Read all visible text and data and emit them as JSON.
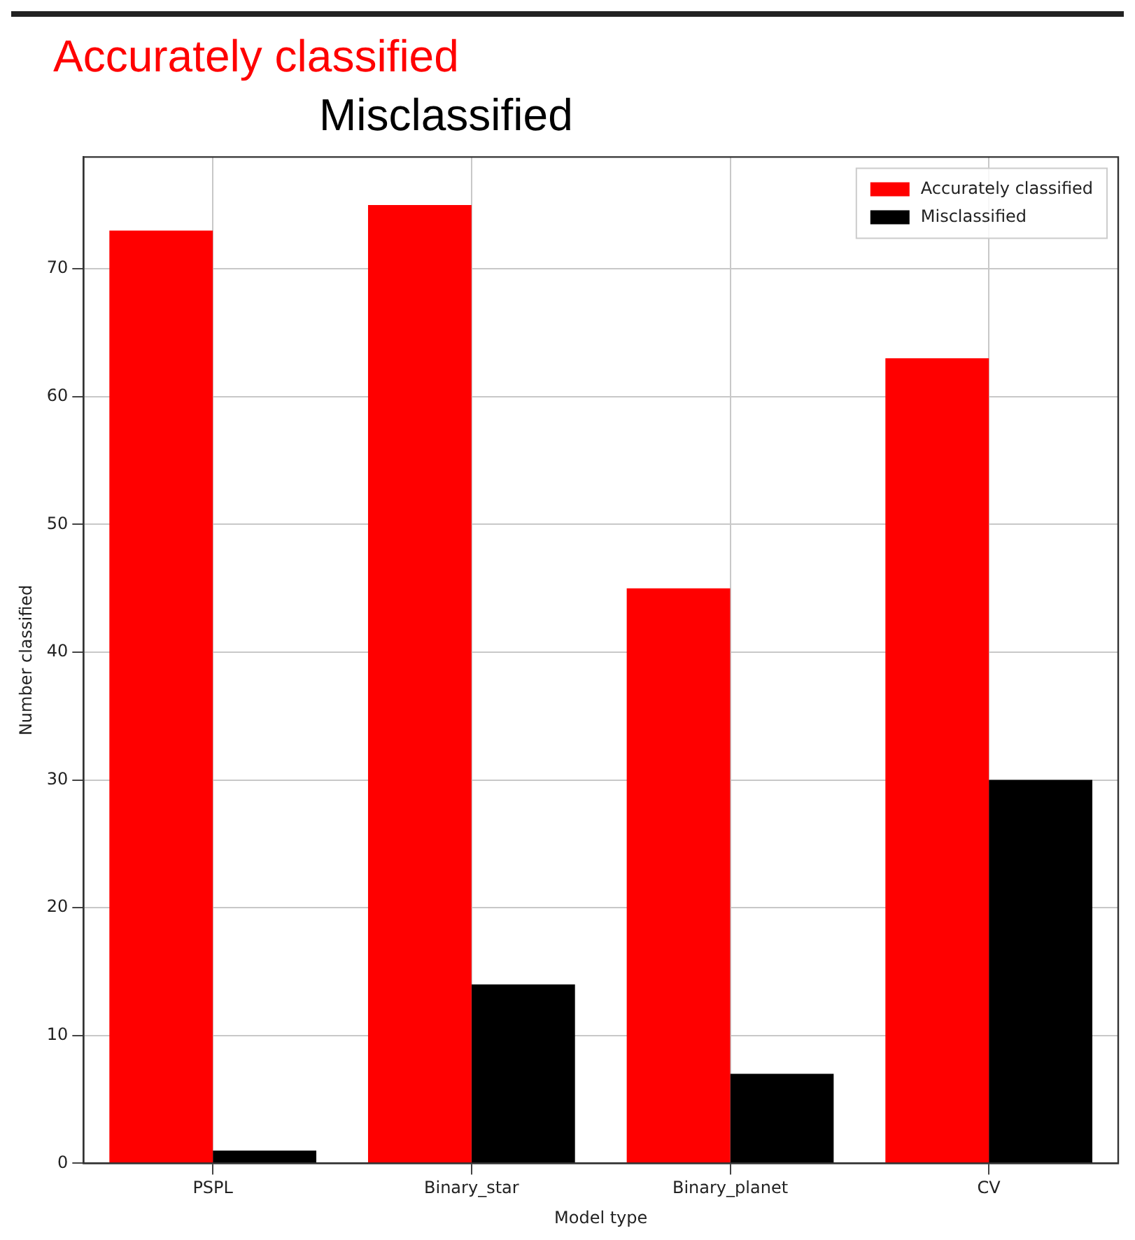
{
  "chart_data": {
    "type": "bar",
    "xlabel": "Model type",
    "ylabel": "Number classified",
    "categories": [
      "PSPL",
      "Binary_star",
      "Binary_planet",
      "CV"
    ],
    "series": [
      {
        "name": "Accurately classified",
        "color": "#ff0000",
        "values": [
          73,
          75,
          45,
          63
        ]
      },
      {
        "name": "Misclassified",
        "color": "#000000",
        "values": [
          1,
          14,
          7,
          30
        ]
      }
    ],
    "ylim": [
      0,
      78.75
    ],
    "yticks": [
      0,
      10,
      20,
      30,
      40,
      50,
      60,
      70
    ],
    "grid": true,
    "legend": "top right",
    "annotations": [
      "Accurately classified",
      "Misclassified"
    ]
  }
}
